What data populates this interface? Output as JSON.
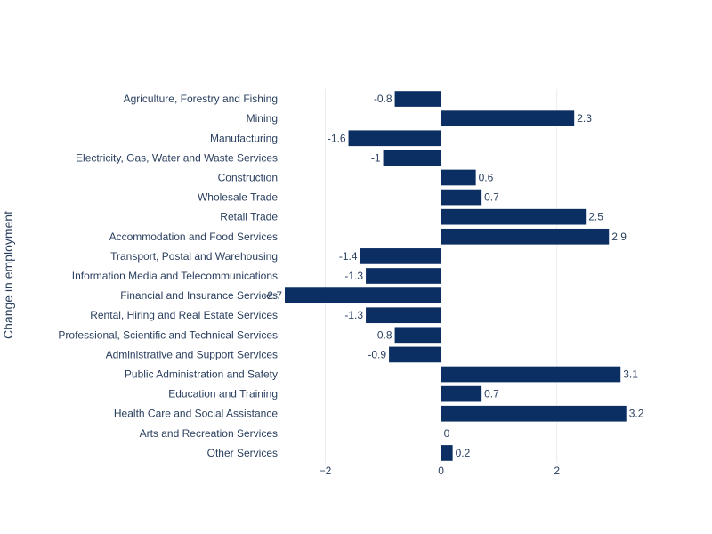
{
  "chart_data": {
    "type": "bar",
    "orientation": "horizontal",
    "title": "",
    "xlabel": "",
    "ylabel": "Change in employment",
    "xlim": [
      -2.7,
      3.45
    ],
    "x_ticks": [
      -2,
      0,
      2
    ],
    "x_tick_labels": [
      "−2",
      "0",
      "2"
    ],
    "grid": true,
    "bar_color": "#0b2f63",
    "categories": [
      "Agriculture, Forestry and Fishing",
      "Mining",
      "Manufacturing",
      "Electricity, Gas, Water and Waste Services",
      "Construction",
      "Wholesale Trade",
      "Retail Trade",
      "Accommodation and Food Services",
      "Transport, Postal and Warehousing",
      "Information Media and Telecommunications",
      "Financial and Insurance Services",
      "Rental, Hiring and Real Estate Services",
      "Professional, Scientific and Technical Services",
      "Administrative and Support Services",
      "Public Administration and Safety",
      "Education and Training",
      "Health Care and Social Assistance",
      "Arts and Recreation Services",
      "Other Services"
    ],
    "values": [
      -0.8,
      2.3,
      -1.6,
      -1,
      0.6,
      0.7,
      2.5,
      2.9,
      -1.4,
      -1.3,
      -2.7,
      -1.3,
      -0.8,
      -0.9,
      3.1,
      0.7,
      3.2,
      0,
      0.2
    ],
    "value_labels": [
      "-0.8",
      "2.3",
      "-1.6",
      "-1",
      "0.6",
      "0.7",
      "2.5",
      "2.9",
      "-1.4",
      "-1.3",
      "-2.7",
      "-1.3",
      "-0.8",
      "-0.9",
      "3.1",
      "0.7",
      "3.2",
      "0",
      "0.2"
    ]
  }
}
